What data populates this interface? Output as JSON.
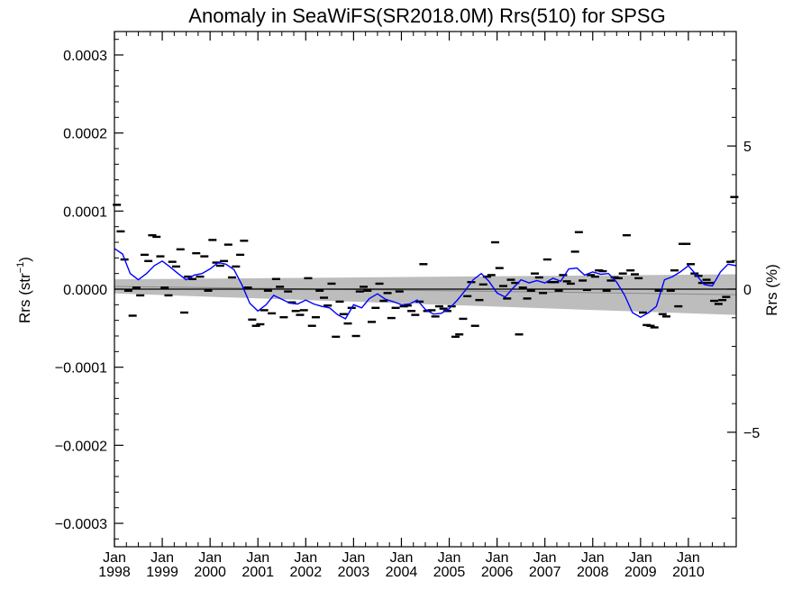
{
  "chart_data": {
    "type": "scatter",
    "title": "Anomaly in SeaWiFS(SR2018.0M) Rrs(510) for SPSG",
    "ylabel_left": "Rrs (str",
    "ylabel_left_sup": "−1",
    "ylabel_left_end": ")",
    "ylabel_right": "Rrs (%)",
    "xlim": [
      1998.0,
      2011.0
    ],
    "ylim_left": [
      -0.00033,
      0.00033
    ],
    "ylim_right": [
      -9,
      9
    ],
    "left_ticks": [
      {
        "value": 0.0003,
        "label": "0.0003"
      },
      {
        "value": 0.0002,
        "label": "0.0002"
      },
      {
        "value": 0.0001,
        "label": "0.0001"
      },
      {
        "value": 0.0,
        "label": "0.0000"
      },
      {
        "value": -0.0001,
        "label": "−0.0001"
      },
      {
        "value": -0.0002,
        "label": "−0.0002"
      },
      {
        "value": -0.0003,
        "label": "−0.0003"
      }
    ],
    "right_ticks": [
      {
        "value": 5,
        "label": "5"
      },
      {
        "value": 0,
        "label": "0"
      },
      {
        "value": -5,
        "label": "−5"
      }
    ],
    "x_ticks": [
      {
        "value": 1998,
        "month": "Jan",
        "year": "1998"
      },
      {
        "value": 1999,
        "month": "Jan",
        "year": "1999"
      },
      {
        "value": 2000,
        "month": "Jan",
        "year": "2000"
      },
      {
        "value": 2001,
        "month": "Jan",
        "year": "2001"
      },
      {
        "value": 2002,
        "month": "Jan",
        "year": "2002"
      },
      {
        "value": 2003,
        "month": "Jan",
        "year": "2003"
      },
      {
        "value": 2004,
        "month": "Jan",
        "year": "2004"
      },
      {
        "value": 2005,
        "month": "Jan",
        "year": "2005"
      },
      {
        "value": 2006,
        "month": "Jan",
        "year": "2006"
      },
      {
        "value": 2007,
        "month": "Jan",
        "year": "2007"
      },
      {
        "value": 2008,
        "month": "Jan",
        "year": "2008"
      },
      {
        "value": 2009,
        "month": "Jan",
        "year": "2009"
      },
      {
        "value": 2010,
        "month": "Jan",
        "year": "2010"
      }
    ],
    "trend_band": {
      "x": [
        1998.0,
        2011.0
      ],
      "upper": [
        1.25e-05,
        1.9e-05
      ],
      "lower": [
        -5.5e-06,
        -3.3e-05
      ]
    },
    "trend_line": {
      "x": [
        1998.0,
        2011.0
      ],
      "y": [
        3.5e-06,
        -7e-06
      ]
    },
    "zero_line": 0.0,
    "series": [
      {
        "kind": "monthly_anomaly",
        "color": "#000000",
        "x": [
          1998.05,
          1998.13,
          1998.21,
          1998.29,
          1998.38,
          1998.46,
          1998.54,
          1998.63,
          1998.71,
          1998.79,
          1998.88,
          1998.96,
          1999.05,
          1999.13,
          1999.21,
          1999.29,
          1999.38,
          1999.46,
          1999.54,
          1999.63,
          1999.71,
          1999.79,
          1999.88,
          1999.96,
          2000.05,
          2000.13,
          2000.21,
          2000.29,
          2000.38,
          2000.46,
          2000.54,
          2000.63,
          2000.71,
          2000.79,
          2000.88,
          2000.96,
          2001.05,
          2001.13,
          2001.21,
          2001.29,
          2001.38,
          2001.46,
          2001.54,
          2001.63,
          2001.71,
          2001.79,
          2001.88,
          2001.96,
          2002.05,
          2002.13,
          2002.21,
          2002.29,
          2002.38,
          2002.46,
          2002.54,
          2002.63,
          2002.71,
          2002.79,
          2002.88,
          2002.96,
          2003.05,
          2003.13,
          2003.21,
          2003.29,
          2003.38,
          2003.46,
          2003.54,
          2003.63,
          2003.71,
          2003.79,
          2003.88,
          2003.96,
          2004.05,
          2004.13,
          2004.21,
          2004.29,
          2004.38,
          2004.46,
          2004.54,
          2004.63,
          2004.71,
          2004.79,
          2004.88,
          2004.96,
          2005.05,
          2005.13,
          2005.21,
          2005.29,
          2005.38,
          2005.46,
          2005.54,
          2005.63,
          2005.71,
          2005.79,
          2005.88,
          2005.96,
          2006.05,
          2006.13,
          2006.21,
          2006.29,
          2006.38,
          2006.46,
          2006.54,
          2006.63,
          2006.71,
          2006.79,
          2006.88,
          2006.96,
          2007.05,
          2007.13,
          2007.21,
          2007.29,
          2007.38,
          2007.46,
          2007.54,
          2007.63,
          2007.71,
          2007.79,
          2007.88,
          2007.96,
          2008.05,
          2008.13,
          2008.21,
          2008.29,
          2008.38,
          2008.46,
          2008.54,
          2008.63,
          2008.71,
          2008.79,
          2008.88,
          2008.96,
          2009.05,
          2009.13,
          2009.21,
          2009.29,
          2009.38,
          2009.46,
          2009.54,
          2009.63,
          2009.71,
          2009.79,
          2009.88,
          2009.96,
          2010.05,
          2010.13,
          2010.21,
          2010.29,
          2010.38,
          2010.46,
          2010.54,
          2010.63,
          2010.71,
          2010.79,
          2010.88,
          2010.96
        ],
        "y": [
          0.000108,
          7.4e-05,
          3.8e-05,
          -2e-06,
          -3.4e-05,
          2e-06,
          -8e-06,
          4.4e-05,
          3.6e-05,
          6.9e-05,
          6.7e-05,
          4.2e-05,
          2e-06,
          -8e-06,
          3.5e-05,
          2.9e-05,
          5.1e-05,
          -3e-05,
          1.6e-05,
          1.3e-05,
          4.6e-05,
          1.6e-05,
          4.2e-05,
          -2e-06,
          6.3e-05,
          3.4e-05,
          3e-05,
          3.6e-05,
          5.7e-05,
          1.5e-05,
          2.9e-05,
          4.4e-05,
          6.2e-05,
          2e-06,
          -3.9e-05,
          -4.7e-05,
          -4.5e-05,
          -2.7e-05,
          -2e-06,
          -3.1e-05,
          1.3e-05,
          3e-06,
          -3.6e-05,
          -3e-06,
          -1.7e-05,
          -2.8e-05,
          -3.3e-05,
          -2.7e-05,
          1.4e-05,
          -4.7e-05,
          -3.6e-05,
          -2e-06,
          -1.1e-05,
          -2.1e-05,
          7e-06,
          -6.1e-05,
          -1.6e-05,
          -3.2e-05,
          -4.4e-05,
          -2.4e-05,
          -6e-05,
          -3e-06,
          3e-06,
          -2e-06,
          -4.2e-05,
          -2.4e-05,
          7e-06,
          -1.5e-05,
          -5e-06,
          -3.7e-05,
          -2.4e-05,
          -3e-06,
          -2.2e-05,
          -2.1e-05,
          -2.8e-05,
          -3.3e-05,
          -1.6e-05,
          3.2e-05,
          -2.8e-05,
          -2.7e-05,
          -3.5e-05,
          -2.2e-05,
          -2.5e-05,
          -2.8e-05,
          -2.2e-05,
          -6.1e-05,
          -5.8e-05,
          -3.8e-05,
          -9e-06,
          9e-06,
          -4.7e-05,
          -1.4e-05,
          6e-06,
          1.6e-05,
          1.8e-05,
          6e-05,
          2.7e-05,
          4e-06,
          -1.2e-05,
          1.2e-05,
          8e-06,
          -5.8e-05,
          2e-06,
          -1.2e-05,
          -2e-06,
          2e-05,
          1.5e-05,
          -5e-06,
          3.8e-05,
          9e-06,
          9e-06,
          -2e-06,
          1.8e-05,
          1e-05,
          7e-06,
          4.8e-05,
          7.3e-05,
          1.1e-05,
          -1e-06,
          1.8e-05,
          1.6e-05,
          2.4e-05,
          2.3e-05,
          -2e-06,
          1.1e-05,
          1.5e-05,
          1.4e-05,
          2e-05,
          6.9e-05,
          2.4e-05,
          1.9e-05,
          1.4e-05,
          -3e-05,
          -4.6e-05,
          -4.7e-05,
          -4.9e-05,
          -2e-06,
          -3.2e-05,
          -3.5e-05,
          -2e-06,
          2.4e-05,
          -2.2e-05,
          5.8e-05,
          5.8e-05,
          3.2e-05,
          2e-05,
          1.7e-05,
          8e-06,
          1.2e-05,
          8e-06,
          -1.5e-05,
          -1.9e-05,
          -1.4e-05,
          -1e-05,
          3.5e-05,
          0.000118
        ]
      },
      {
        "kind": "running_mean",
        "color": "#0000ff",
        "x": [
          1998.0,
          1998.17,
          1998.33,
          1998.5,
          1998.67,
          1998.83,
          1999.0,
          1999.17,
          1999.33,
          1999.5,
          1999.67,
          1999.83,
          2000.0,
          2000.17,
          2000.33,
          2000.5,
          2000.67,
          2000.83,
          2001.0,
          2001.17,
          2001.33,
          2001.5,
          2001.67,
          2001.83,
          2002.0,
          2002.17,
          2002.33,
          2002.5,
          2002.67,
          2002.83,
          2003.0,
          2003.17,
          2003.33,
          2003.5,
          2003.67,
          2003.83,
          2004.0,
          2004.17,
          2004.33,
          2004.5,
          2004.67,
          2004.83,
          2005.0,
          2005.17,
          2005.33,
          2005.5,
          2005.67,
          2005.83,
          2006.0,
          2006.17,
          2006.33,
          2006.5,
          2006.67,
          2006.83,
          2007.0,
          2007.17,
          2007.33,
          2007.5,
          2007.67,
          2007.83,
          2008.0,
          2008.17,
          2008.33,
          2008.5,
          2008.67,
          2008.83,
          2009.0,
          2009.17,
          2009.33,
          2009.5,
          2009.67,
          2009.83,
          2010.0,
          2010.17,
          2010.33,
          2010.5,
          2010.67,
          2010.83,
          2011.0
        ],
        "y": [
          5.2e-05,
          4.5e-05,
          2e-05,
          1.2e-05,
          2e-05,
          3e-05,
          3.6e-05,
          2.8e-05,
          2e-05,
          1.2e-05,
          1.8e-05,
          2e-05,
          2.6e-05,
          3.4e-05,
          3.2e-05,
          2.5e-05,
          5e-06,
          -1.8e-05,
          -2.8e-05,
          -2e-05,
          -8e-06,
          -1.3e-05,
          -1.8e-05,
          -1.9e-05,
          -1.4e-05,
          -1.9e-05,
          -2.2e-05,
          -2.4e-05,
          -3.3e-05,
          -3.8e-05,
          -2e-05,
          -2.4e-05,
          -1.2e-05,
          -6e-06,
          -1.3e-05,
          -1.6e-05,
          -2e-05,
          -1.9e-05,
          -1.4e-05,
          -2.6e-05,
          -3.2e-05,
          -3.1e-05,
          -2.5e-05,
          -1.4e-05,
          -2e-06,
          1.2e-05,
          2e-05,
          1e-05,
          -5e-06,
          -1e-05,
          1e-06,
          1.2e-05,
          8e-06,
          1.1e-05,
          8e-06,
          1.4e-05,
          1e-05,
          2.6e-05,
          2.7e-05,
          1.8e-05,
          2.2e-05,
          1.9e-05,
          2e-05,
          9e-06,
          -8e-06,
          -3e-05,
          -3.6e-05,
          -3e-05,
          -2.2e-05,
          1.2e-05,
          1.6e-05,
          2.2e-05,
          3e-05,
          1.8e-05,
          6e-06,
          4e-06,
          2.2e-05,
          3.2e-05,
          3e-05
        ]
      }
    ]
  }
}
